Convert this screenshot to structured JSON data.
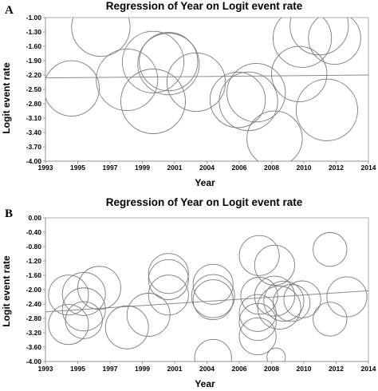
{
  "chart_data": [
    {
      "panel": "A",
      "type": "scatter",
      "title": "Regression of Year on Logit event rate",
      "xlabel": "Year",
      "ylabel": "Logit event rate",
      "xlim": [
        1993,
        2014
      ],
      "ylim": [
        -4.0,
        -1.0
      ],
      "xticks": [
        "1993",
        "1995",
        "1997",
        "1999",
        "2001",
        "2004",
        "2006",
        "2008",
        "2010",
        "2012",
        "2014"
      ],
      "yticks": [
        "-1.00",
        "-1.30",
        "-1.60",
        "-1.90",
        "-2.20",
        "-2.50",
        "-2.80",
        "-3.10",
        "-3.40",
        "-3.70",
        "-4.00"
      ],
      "regression_line": {
        "x": [
          1993,
          2014
        ],
        "y": [
          -2.26,
          -2.2
        ]
      },
      "points": [
        {
          "x": 1994.7,
          "y": -2.48,
          "r": 1.8
        },
        {
          "x": 1996.6,
          "y": -1.2,
          "r": 1.9
        },
        {
          "x": 1998.3,
          "y": -2.3,
          "r": 2.0
        },
        {
          "x": 2000.0,
          "y": -1.93,
          "r": 2.0
        },
        {
          "x": 2000.0,
          "y": -2.75,
          "r": 2.1
        },
        {
          "x": 2001.0,
          "y": -1.92,
          "r": 1.9
        },
        {
          "x": 2001.0,
          "y": -1.97,
          "r": 2.0
        },
        {
          "x": 2002.8,
          "y": -2.35,
          "r": 1.9
        },
        {
          "x": 2005.5,
          "y": -2.72,
          "r": 1.8
        },
        {
          "x": 2006.2,
          "y": -2.75,
          "r": 1.9
        },
        {
          "x": 2006.7,
          "y": -2.57,
          "r": 1.9
        },
        {
          "x": 2007.9,
          "y": -3.53,
          "r": 1.8
        },
        {
          "x": 2009.5,
          "y": -2.18,
          "r": 1.8
        },
        {
          "x": 2009.7,
          "y": -1.43,
          "r": 1.9
        },
        {
          "x": 2010.8,
          "y": -1.17,
          "r": 1.9
        },
        {
          "x": 2011.3,
          "y": -2.93,
          "r": 2.0
        },
        {
          "x": 2011.8,
          "y": -1.43,
          "r": 1.7
        }
      ]
    },
    {
      "panel": "B",
      "type": "scatter",
      "title": "Regression of Year on Logit event rate",
      "xlabel": "Year",
      "ylabel": "Logit event rate",
      "xlim": [
        1993,
        2014
      ],
      "ylim": [
        -4.0,
        0.0
      ],
      "xticks": [
        "1993",
        "1995",
        "1997",
        "1999",
        "2001",
        "2004",
        "2006",
        "2008",
        "2010",
        "2012",
        "2014"
      ],
      "yticks": [
        "0.00",
        "-0.40",
        "-0.80",
        "-1.20",
        "-1.60",
        "-2.00",
        "-2.40",
        "-2.80",
        "-3.20",
        "-3.60",
        "-4.00"
      ],
      "regression_line": {
        "x": [
          1993,
          2014
        ],
        "y": [
          -2.62,
          -2.03
        ]
      },
      "points": [
        {
          "x": 1994.5,
          "y": -2.15,
          "r": 1.3
        },
        {
          "x": 1994.5,
          "y": -2.97,
          "r": 1.3
        },
        {
          "x": 1995.5,
          "y": -2.12,
          "r": 1.4
        },
        {
          "x": 1995.5,
          "y": -2.55,
          "r": 1.4
        },
        {
          "x": 1995.5,
          "y": -2.85,
          "r": 1.2
        },
        {
          "x": 1996.5,
          "y": -1.95,
          "r": 1.4
        },
        {
          "x": 1998.3,
          "y": -3.05,
          "r": 1.4
        },
        {
          "x": 1999.7,
          "y": -2.7,
          "r": 1.4
        },
        {
          "x": 2001.0,
          "y": -1.55,
          "r": 1.3
        },
        {
          "x": 2001.0,
          "y": -1.72,
          "r": 1.3
        },
        {
          "x": 2001.0,
          "y": -2.15,
          "r": 1.3
        },
        {
          "x": 2003.9,
          "y": -1.85,
          "r": 1.3
        },
        {
          "x": 2003.9,
          "y": -2.18,
          "r": 1.4
        },
        {
          "x": 2003.9,
          "y": -2.28,
          "r": 1.3
        },
        {
          "x": 2003.9,
          "y": -3.9,
          "r": 1.2
        },
        {
          "x": 2006.9,
          "y": -1.05,
          "r": 1.3
        },
        {
          "x": 2006.9,
          "y": -2.17,
          "r": 1.2
        },
        {
          "x": 2006.8,
          "y": -2.65,
          "r": 1.2
        },
        {
          "x": 2006.8,
          "y": -2.9,
          "r": 1.2
        },
        {
          "x": 2006.8,
          "y": -3.3,
          "r": 1.2
        },
        {
          "x": 2007.9,
          "y": -1.32,
          "r": 1.3
        },
        {
          "x": 2007.9,
          "y": -2.18,
          "r": 1.3
        },
        {
          "x": 2008.2,
          "y": -2.5,
          "r": 1.4
        },
        {
          "x": 2008.5,
          "y": -2.32,
          "r": 1.3
        },
        {
          "x": 2009.0,
          "y": -2.37,
          "r": 1.2
        },
        {
          "x": 2009.7,
          "y": -2.27,
          "r": 1.2
        },
        {
          "x": 2008.0,
          "y": -3.88,
          "r": 0.6
        },
        {
          "x": 2011.5,
          "y": -0.88,
          "r": 1.1
        },
        {
          "x": 2011.5,
          "y": -2.82,
          "r": 1.1
        },
        {
          "x": 2012.6,
          "y": -2.2,
          "r": 1.3
        }
      ]
    }
  ]
}
